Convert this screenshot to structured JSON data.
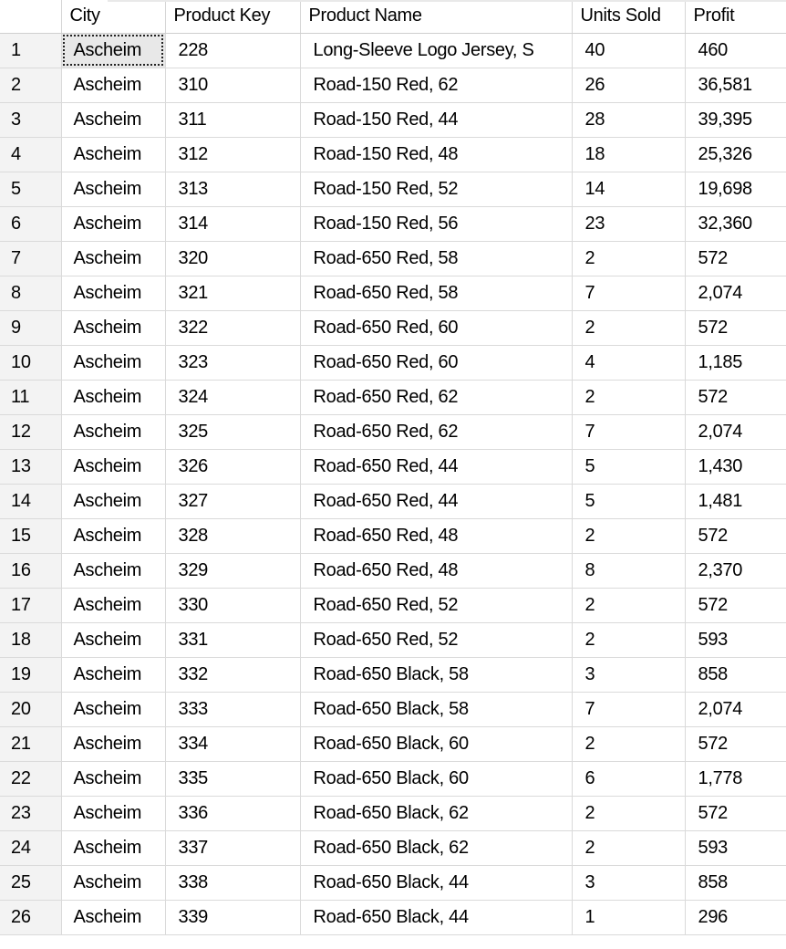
{
  "columns": [
    "",
    "City",
    "Product Key",
    "Product Name",
    "Units Sold",
    "Profit"
  ],
  "rows": [
    [
      "1",
      "Ascheim",
      "228",
      "Long-Sleeve Logo Jersey, S",
      "40",
      "460"
    ],
    [
      "2",
      "Ascheim",
      "310",
      "Road-150 Red, 62",
      "26",
      "36,581"
    ],
    [
      "3",
      "Ascheim",
      "311",
      "Road-150 Red, 44",
      "28",
      "39,395"
    ],
    [
      "4",
      "Ascheim",
      "312",
      "Road-150 Red, 48",
      "18",
      "25,326"
    ],
    [
      "5",
      "Ascheim",
      "313",
      "Road-150 Red, 52",
      "14",
      "19,698"
    ],
    [
      "6",
      "Ascheim",
      "314",
      "Road-150 Red, 56",
      "23",
      "32,360"
    ],
    [
      "7",
      "Ascheim",
      "320",
      "Road-650 Red, 58",
      "2",
      "572"
    ],
    [
      "8",
      "Ascheim",
      "321",
      "Road-650 Red, 58",
      "7",
      "2,074"
    ],
    [
      "9",
      "Ascheim",
      "322",
      "Road-650 Red, 60",
      "2",
      "572"
    ],
    [
      "10",
      "Ascheim",
      "323",
      "Road-650 Red, 60",
      "4",
      "1,185"
    ],
    [
      "11",
      "Ascheim",
      "324",
      "Road-650 Red, 62",
      "2",
      "572"
    ],
    [
      "12",
      "Ascheim",
      "325",
      "Road-650 Red, 62",
      "7",
      "2,074"
    ],
    [
      "13",
      "Ascheim",
      "326",
      "Road-650 Red, 44",
      "5",
      "1,430"
    ],
    [
      "14",
      "Ascheim",
      "327",
      "Road-650 Red, 44",
      "5",
      "1,481"
    ],
    [
      "15",
      "Ascheim",
      "328",
      "Road-650 Red, 48",
      "2",
      "572"
    ],
    [
      "16",
      "Ascheim",
      "329",
      "Road-650 Red, 48",
      "8",
      "2,370"
    ],
    [
      "17",
      "Ascheim",
      "330",
      "Road-650 Red, 52",
      "2",
      "572"
    ],
    [
      "18",
      "Ascheim",
      "331",
      "Road-650 Red, 52",
      "2",
      "593"
    ],
    [
      "19",
      "Ascheim",
      "332",
      "Road-650 Black, 58",
      "3",
      "858"
    ],
    [
      "20",
      "Ascheim",
      "333",
      "Road-650 Black, 58",
      "7",
      "2,074"
    ],
    [
      "21",
      "Ascheim",
      "334",
      "Road-650 Black, 60",
      "2",
      "572"
    ],
    [
      "22",
      "Ascheim",
      "335",
      "Road-650 Black, 60",
      "6",
      "1,778"
    ],
    [
      "23",
      "Ascheim",
      "336",
      "Road-650 Black, 62",
      "2",
      "572"
    ],
    [
      "24",
      "Ascheim",
      "337",
      "Road-650 Black, 62",
      "2",
      "593"
    ],
    [
      "25",
      "Ascheim",
      "338",
      "Road-650 Black, 44",
      "3",
      "858"
    ],
    [
      "26",
      "Ascheim",
      "339",
      "Road-650 Black, 44",
      "1",
      "296"
    ]
  ],
  "selected_cell": {
    "row": 0,
    "column": 1
  }
}
